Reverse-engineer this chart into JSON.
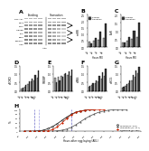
{
  "panel_A": {
    "title": "A",
    "row_labels": [
      "Foxo-ADL",
      "CDAS",
      "CocC",
      "dPRKBP",
      "dLiP",
      "dSUP",
      "Lipopho-",
      "Actin"
    ],
    "n_feeding_lanes": 4,
    "n_starvation_lanes": 4,
    "band_intensities": [
      [
        0.6,
        0.6,
        0.6,
        0.6,
        0.5,
        0.5,
        0.5,
        0.5
      ],
      [
        0.55,
        0.55,
        0.55,
        0.55,
        0.5,
        0.5,
        0.5,
        0.5
      ],
      [
        0.5,
        0.5,
        0.5,
        0.5,
        0.5,
        0.5,
        0.5,
        0.5
      ],
      [
        0.6,
        0.6,
        0.6,
        0.6,
        0.6,
        0.7,
        0.8,
        0.9
      ],
      [
        0.5,
        0.5,
        0.5,
        0.5,
        0.6,
        0.7,
        0.8,
        0.9
      ],
      [
        0.5,
        0.5,
        0.5,
        0.5,
        0.6,
        0.7,
        0.8,
        0.9
      ],
      [
        0.5,
        0.5,
        0.5,
        0.5,
        0.6,
        0.7,
        0.8,
        0.9
      ],
      [
        0.55,
        0.55,
        0.55,
        0.55,
        0.55,
        0.55,
        0.55,
        0.55
      ]
    ]
  },
  "panel_B": {
    "title": "B",
    "ylabel": "miRR",
    "xlabel": "Hours MX",
    "categories": [
      "0h",
      "1h",
      "3h",
      "5h"
    ],
    "feeding": [
      0.4,
      0.5,
      0.6,
      0.7
    ],
    "starvation": [
      0.3,
      0.7,
      1.2,
      1.8
    ],
    "feeding_color": "#aaaaaa",
    "starvation_color": "#333333",
    "ylim": [
      0,
      2.5
    ]
  },
  "panel_C": {
    "title": "C",
    "ylabel": "EuR",
    "xlabel": "Hours MX",
    "categories": [
      "0h",
      "1h",
      "3h",
      "5h"
    ],
    "feeding": [
      0.3,
      0.4,
      0.5,
      0.6
    ],
    "starvation": [
      0.3,
      0.6,
      1.0,
      1.5
    ],
    "feeding_color": "#aaaaaa",
    "starvation_color": "#333333",
    "ylim": [
      0,
      2.0
    ]
  },
  "panel_D": {
    "title": "D",
    "ylabel": "dFOXO",
    "categories": [
      "0h",
      "1h",
      "3h",
      "5h",
      "8h",
      "12h"
    ],
    "feeding": [
      0.15,
      0.25,
      0.4,
      0.55,
      0.65,
      0.8
    ],
    "starvation": [
      0.2,
      0.35,
      0.55,
      0.75,
      0.95,
      1.2
    ],
    "feeding_color": "#aaaaaa",
    "starvation_color": "#333333",
    "ylim": [
      0,
      1.5
    ]
  },
  "panel_E": {
    "title": "E",
    "ylabel": "SREBP",
    "categories": [
      "0h",
      "1h",
      "3h",
      "5h",
      "8h",
      "12h"
    ],
    "feeding": [
      0.8,
      0.85,
      0.9,
      1.0,
      0.95,
      0.9
    ],
    "starvation": [
      0.5,
      0.65,
      0.85,
      1.05,
      1.15,
      1.25
    ],
    "feeding_color": "#aaaaaa",
    "starvation_color": "#333333",
    "ylim": [
      0,
      1.5
    ]
  },
  "panel_F": {
    "title": "F",
    "ylabel": "dPAS",
    "categories": [
      "0h",
      "1h",
      "3h",
      "5h",
      "8h",
      "12h"
    ],
    "feeding": [
      0.25,
      0.35,
      0.45,
      0.6,
      0.75,
      0.9
    ],
    "starvation": [
      0.3,
      0.45,
      0.65,
      0.9,
      1.1,
      1.3
    ],
    "feeding_color": "#aaaaaa",
    "starvation_color": "#333333",
    "ylim": [
      0,
      1.5
    ]
  },
  "panel_G": {
    "title": "G",
    "ylabel": "dHCG",
    "categories": [
      "0h",
      "1h",
      "3h",
      "5h",
      "8h",
      "12h"
    ],
    "feeding": [
      0.2,
      0.3,
      0.45,
      0.65,
      0.85,
      1.05
    ],
    "starvation": [
      0.25,
      0.4,
      0.65,
      0.95,
      1.2,
      1.45
    ],
    "feeding_color": "#aaaaaa",
    "starvation_color": "#333333",
    "ylim": [
      0,
      1.5
    ]
  },
  "panel_H": {
    "title": "H",
    "xlabel": "Hours after egg laying (AEL)",
    "ylabel": "%",
    "xlim": [
      96,
      200
    ],
    "ylim": [
      0,
      100
    ],
    "xticks": [
      96,
      104,
      112,
      120,
      128,
      136,
      144,
      152,
      160,
      168,
      176,
      184,
      192,
      200
    ],
    "feeding_x": [
      100,
      104,
      108,
      112,
      116,
      120,
      124,
      128,
      132,
      136,
      140,
      144,
      148,
      152,
      156,
      160
    ],
    "feeding_y": [
      0,
      0,
      0,
      2,
      5,
      12,
      22,
      35,
      50,
      65,
      78,
      88,
      94,
      97,
      99,
      100
    ],
    "starvation_x": [
      100,
      104,
      108,
      112,
      116,
      120,
      124,
      128,
      132,
      136,
      140,
      144,
      148,
      152,
      156,
      160,
      164,
      168,
      172,
      176,
      180,
      184,
      188
    ],
    "starvation_y": [
      0,
      0,
      0,
      0,
      0,
      0,
      0,
      2,
      5,
      10,
      18,
      30,
      44,
      58,
      70,
      80,
      88,
      93,
      97,
      99,
      100,
      100,
      100
    ],
    "refeeding_x": [
      100,
      104,
      108,
      112,
      116,
      120,
      124,
      128,
      132,
      136,
      140,
      144,
      148,
      152,
      156,
      160,
      164,
      168
    ],
    "refeeding_y": [
      0,
      0,
      0,
      0,
      0,
      2,
      8,
      20,
      38,
      58,
      75,
      87,
      93,
      97,
      99,
      100,
      100,
      100
    ],
    "feeding_color": "#000000",
    "starvation_color": "#444444",
    "refeeding_color": "#cc2200",
    "vline_x": [
      108,
      112,
      140
    ],
    "vline_colors": [
      "#4444bb",
      "#8888dd",
      "#4444bb"
    ],
    "legend_feeding": "Feeding (N=237)",
    "legend_starvation": "Starvation (N=117)",
    "legend_refeeding": "Refeeding (N=180)"
  },
  "figure_bg": "#ffffff"
}
